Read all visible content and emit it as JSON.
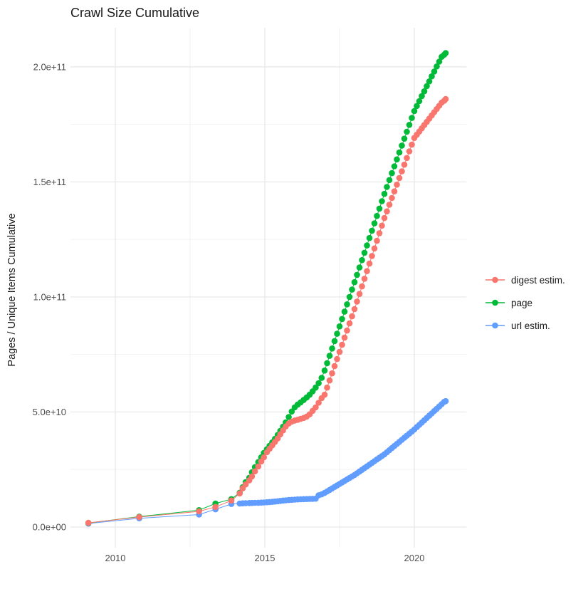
{
  "chart_data": {
    "type": "scatter",
    "title": "Crawl Size Cumulative",
    "xlabel": "",
    "ylabel": "Pages / Unique Items Cumulative",
    "value_unit_note": "values stored in billions (1e9); y axis shows scientific labels",
    "grid": true,
    "legend_position": "right",
    "xlim": [
      2008.5,
      2021.75
    ],
    "ylim_billions": [
      -9,
      217
    ],
    "x_ticks": [
      {
        "value": 2010,
        "label": "2010"
      },
      {
        "value": 2015,
        "label": "2015"
      },
      {
        "value": 2020,
        "label": "2020"
      }
    ],
    "x_minor": [
      2012.5,
      2017.5
    ],
    "y_ticks": [
      {
        "value_billions": 0,
        "label": "0.0e+00"
      },
      {
        "value_billions": 50,
        "label": "5.0e+10"
      },
      {
        "value_billions": 100,
        "label": "1.0e+11"
      },
      {
        "value_billions": 150,
        "label": "1.5e+11"
      },
      {
        "value_billions": 200,
        "label": "2.0e+11"
      }
    ],
    "y_minor_billions": [
      25,
      75,
      125,
      175
    ],
    "x": [
      2009.1,
      2010.8,
      2012.8,
      2013.35,
      2013.88,
      2014.16,
      2014.26,
      2014.36,
      2014.48,
      2014.57,
      2014.67,
      2014.78,
      2014.88,
      2014.97,
      2015.07,
      2015.16,
      2015.25,
      2015.34,
      2015.43,
      2015.52,
      2015.61,
      2015.7,
      2015.8,
      2015.9,
      2016.0,
      2016.1,
      2016.2,
      2016.3,
      2016.4,
      2016.5,
      2016.6,
      2016.7,
      2016.8,
      2016.9,
      2017.0,
      2017.083,
      2017.167,
      2017.25,
      2017.333,
      2017.417,
      2017.5,
      2017.583,
      2017.667,
      2017.75,
      2017.833,
      2017.917,
      2018.0,
      2018.083,
      2018.167,
      2018.25,
      2018.333,
      2018.417,
      2018.5,
      2018.583,
      2018.667,
      2018.75,
      2018.833,
      2018.917,
      2019.0,
      2019.083,
      2019.167,
      2019.25,
      2019.333,
      2019.417,
      2019.5,
      2019.583,
      2019.667,
      2019.75,
      2019.833,
      2019.917,
      2020.0,
      2020.083,
      2020.167,
      2020.25,
      2020.333,
      2020.417,
      2020.5,
      2020.583,
      2020.667,
      2020.75,
      2020.833,
      2020.917,
      2021.0,
      2021.05
    ],
    "series": [
      {
        "name": "digest estim.",
        "color": "#F8766D",
        "values_billions": [
          1.8,
          4.3,
          6.8,
          8.7,
          11.5,
          14.6,
          16.8,
          18.5,
          20.3,
          22.0,
          24.2,
          26.3,
          28.5,
          30.3,
          32.5,
          34.0,
          35.5,
          37.0,
          38.5,
          40.3,
          42.0,
          43.7,
          45.0,
          45.8,
          46.3,
          46.6,
          47.0,
          47.4,
          48.0,
          49.0,
          50.5,
          52.0,
          54.0,
          56.0,
          57.5,
          60.6,
          63.7,
          66.8,
          69.9,
          73.0,
          76.1,
          79.2,
          82.3,
          85.4,
          88.5,
          91.6,
          94.7,
          98.0,
          101.3,
          104.6,
          107.9,
          111.2,
          114.5,
          117.8,
          121.1,
          124.4,
          127.7,
          131.0,
          134.3,
          137.2,
          140.1,
          143.0,
          145.9,
          148.8,
          151.7,
          154.6,
          157.5,
          160.4,
          163.3,
          166.2,
          169.1,
          170.5,
          171.9,
          173.3,
          174.7,
          176.1,
          177.5,
          178.9,
          180.3,
          181.7,
          183.1,
          184.5,
          185.3,
          186.0
        ]
      },
      {
        "name": "page",
        "color": "#00BA38",
        "values_billions": [
          1.7,
          4.5,
          7.3,
          10.2,
          12.1,
          14.9,
          17.3,
          19.5,
          21.4,
          23.8,
          26.0,
          28.2,
          30.3,
          32.2,
          33.8,
          35.3,
          36.8,
          38.3,
          40.0,
          41.8,
          43.6,
          45.5,
          47.8,
          50.2,
          52.0,
          53.2,
          54.2,
          55.2,
          56.3,
          57.5,
          59.0,
          60.6,
          62.5,
          64.8,
          68.0,
          71.2,
          74.4,
          77.6,
          80.8,
          84.0,
          87.2,
          90.4,
          93.6,
          96.8,
          100.0,
          103.2,
          106.4,
          109.6,
          112.8,
          116.0,
          119.2,
          122.4,
          125.6,
          128.8,
          132.0,
          135.2,
          138.4,
          141.6,
          144.8,
          147.8,
          150.8,
          153.8,
          156.8,
          159.8,
          162.8,
          165.8,
          168.8,
          171.8,
          174.8,
          177.8,
          180.8,
          183.0,
          185.1,
          187.3,
          189.4,
          191.6,
          193.7,
          195.9,
          198.0,
          200.2,
          202.3,
          204.4,
          205.3,
          206.0
        ]
      },
      {
        "name": "url estim.",
        "color": "#619CFF",
        "values_billions": [
          1.5,
          3.8,
          5.4,
          7.7,
          10.0,
          10.2,
          10.3,
          10.35,
          10.4,
          10.45,
          10.5,
          10.55,
          10.6,
          10.65,
          10.75,
          10.85,
          10.95,
          11.05,
          11.2,
          11.35,
          11.5,
          11.6,
          11.7,
          11.8,
          11.9,
          12.0,
          12.05,
          12.1,
          12.15,
          12.2,
          12.25,
          12.3,
          13.8,
          14.2,
          14.8,
          15.45,
          16.1,
          16.75,
          17.4,
          18.05,
          18.7,
          19.35,
          20.0,
          20.65,
          21.3,
          21.95,
          22.6,
          23.35,
          24.1,
          24.85,
          25.6,
          26.35,
          27.1,
          27.85,
          28.6,
          29.35,
          30.1,
          30.85,
          31.6,
          32.5,
          33.4,
          34.3,
          35.2,
          36.1,
          37.0,
          37.9,
          38.8,
          39.7,
          40.6,
          41.5,
          42.4,
          43.4,
          44.4,
          45.4,
          46.4,
          47.4,
          48.4,
          49.4,
          50.4,
          51.4,
          52.4,
          53.4,
          54.4,
          54.7
        ]
      }
    ],
    "colors": {
      "grid_major": "#E6E6E6",
      "grid_minor": "#F2F2F2",
      "tick_label": "#4D4D4D",
      "text": "#1A1A1A",
      "background": "#FFFFFF"
    }
  }
}
